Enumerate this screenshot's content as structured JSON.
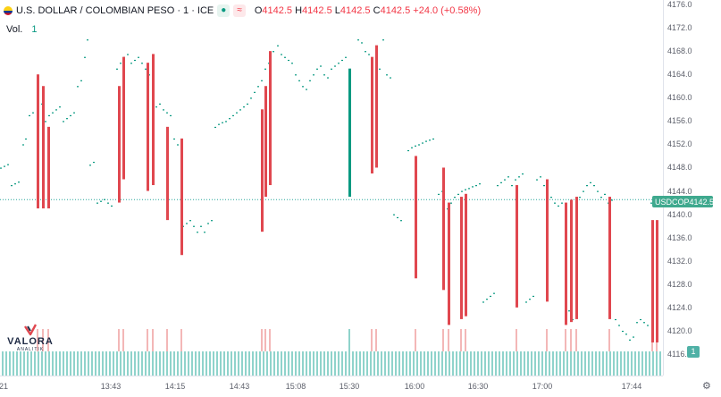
{
  "header": {
    "symbol_title": "U.S. DOLLAR / COLOMBIAN PESO · 1 · ICE",
    "pill_a": "●",
    "pill_b": "≈",
    "o_label": "O",
    "o_value": "4142.5",
    "h_label": "H",
    "h_value": "4142.5",
    "l_label": "L",
    "l_value": "4142.5",
    "c_label": "C",
    "c_value": "4142.5",
    "change": "+24.0 (+0.58%)"
  },
  "volume_legend": {
    "label": "Vol.",
    "value": "1"
  },
  "logo": {
    "name": "VALORA",
    "tagline": "ANALITIK"
  },
  "last_price_tag": {
    "symbol": "USDCOP",
    "value": "4142.5"
  },
  "volume_tag": "1",
  "time_edge_label": "21",
  "colors": {
    "up": "#089981",
    "down": "#e0474f",
    "volume": "#8fd3cb",
    "volume_down": "#f3b7b7",
    "accent": "#2962ff"
  },
  "chart_data": {
    "type": "candlestick",
    "ylim": [
      4116,
      4176
    ],
    "last_price": 4142.5,
    "y_ticks": [
      4176.0,
      4172.0,
      4168.0,
      4164.0,
      4160.0,
      4156.0,
      4152.0,
      4148.0,
      4144.0,
      4140.0,
      4136.0,
      4132.0,
      4128.0,
      4124.0,
      4120.0,
      4116.0
    ],
    "x_ticks": [
      "13:43",
      "14:15",
      "14:43",
      "15:08",
      "15:30",
      "16:00",
      "16:30",
      "17:00",
      "17:44"
    ],
    "dots": [
      [
        0,
        4148
      ],
      [
        4,
        4148.3
      ],
      [
        8,
        4148.6
      ],
      [
        12,
        4145
      ],
      [
        16,
        4145.3
      ],
      [
        20,
        4145.6
      ],
      [
        25,
        4152
      ],
      [
        28,
        4153
      ],
      [
        32,
        4157
      ],
      [
        36,
        4157.5
      ],
      [
        42,
        4158
      ],
      [
        46,
        4159
      ],
      [
        50,
        4156
      ],
      [
        54,
        4157
      ],
      [
        58,
        4157.5
      ],
      [
        62,
        4158
      ],
      [
        66,
        4158.5
      ],
      [
        70,
        4156
      ],
      [
        74,
        4156.5
      ],
      [
        78,
        4157
      ],
      [
        82,
        4157.5
      ],
      [
        86,
        4162
      ],
      [
        90,
        4163
      ],
      [
        94,
        4167
      ],
      [
        97,
        4170
      ],
      [
        100,
        4148.5
      ],
      [
        104,
        4149
      ],
      [
        108,
        4142
      ],
      [
        112,
        4142.3
      ],
      [
        116,
        4142.6
      ],
      [
        120,
        4142
      ],
      [
        124,
        4141.5
      ],
      [
        130,
        4165
      ],
      [
        134,
        4166
      ],
      [
        138,
        4167
      ],
      [
        142,
        4167.5
      ],
      [
        146,
        4166
      ],
      [
        150,
        4166.5
      ],
      [
        154,
        4167
      ],
      [
        158,
        4166
      ],
      [
        162,
        4165
      ],
      [
        166,
        4164
      ],
      [
        170,
        4158
      ],
      [
        174,
        4158.5
      ],
      [
        178,
        4159
      ],
      [
        182,
        4158
      ],
      [
        186,
        4157.5
      ],
      [
        190,
        4157
      ],
      [
        194,
        4153
      ],
      [
        198,
        4152
      ],
      [
        204,
        4138
      ],
      [
        208,
        4138.5
      ],
      [
        212,
        4139
      ],
      [
        216,
        4138
      ],
      [
        220,
        4137
      ],
      [
        224,
        4138
      ],
      [
        228,
        4137
      ],
      [
        232,
        4138.5
      ],
      [
        236,
        4139
      ],
      [
        240,
        4155
      ],
      [
        244,
        4155.5
      ],
      [
        248,
        4155.8
      ],
      [
        252,
        4156
      ],
      [
        256,
        4156.5
      ],
      [
        260,
        4157
      ],
      [
        264,
        4157.5
      ],
      [
        268,
        4158
      ],
      [
        272,
        4158.5
      ],
      [
        276,
        4159
      ],
      [
        280,
        4160
      ],
      [
        284,
        4161
      ],
      [
        288,
        4162
      ],
      [
        292,
        4163
      ],
      [
        296,
        4165
      ],
      [
        300,
        4166
      ],
      [
        305,
        4168
      ],
      [
        310,
        4169
      ],
      [
        314,
        4167.5
      ],
      [
        318,
        4167
      ],
      [
        322,
        4166.5
      ],
      [
        326,
        4166
      ],
      [
        330,
        4164
      ],
      [
        334,
        4163
      ],
      [
        338,
        4162
      ],
      [
        342,
        4161.5
      ],
      [
        346,
        4163
      ],
      [
        350,
        4164
      ],
      [
        354,
        4165
      ],
      [
        358,
        4165.5
      ],
      [
        362,
        4164
      ],
      [
        366,
        4163.5
      ],
      [
        370,
        4165
      ],
      [
        374,
        4165.5
      ],
      [
        378,
        4166
      ],
      [
        382,
        4166.5
      ],
      [
        386,
        4167
      ],
      [
        400,
        4170
      ],
      [
        404,
        4169.5
      ],
      [
        408,
        4168
      ],
      [
        412,
        4167.5
      ],
      [
        416,
        4166.5
      ],
      [
        420,
        4166
      ],
      [
        424,
        4165
      ],
      [
        428,
        4170
      ],
      [
        432,
        4164
      ],
      [
        436,
        4163.5
      ],
      [
        440,
        4140
      ],
      [
        444,
        4139.5
      ],
      [
        448,
        4139
      ],
      [
        456,
        4151
      ],
      [
        460,
        4151.5
      ],
      [
        464,
        4151.8
      ],
      [
        468,
        4152
      ],
      [
        472,
        4152.3
      ],
      [
        476,
        4152.6
      ],
      [
        480,
        4152.8
      ],
      [
        484,
        4153
      ],
      [
        490,
        4143.5
      ],
      [
        494,
        4144
      ],
      [
        500,
        4141
      ],
      [
        504,
        4142
      ],
      [
        508,
        4143
      ],
      [
        512,
        4143.5
      ],
      [
        516,
        4144
      ],
      [
        520,
        4144.3
      ],
      [
        524,
        4144.5
      ],
      [
        528,
        4144.8
      ],
      [
        532,
        4145
      ],
      [
        536,
        4145.3
      ],
      [
        540,
        4125
      ],
      [
        544,
        4125.5
      ],
      [
        548,
        4126
      ],
      [
        552,
        4126.5
      ],
      [
        556,
        4145
      ],
      [
        560,
        4145.5
      ],
      [
        564,
        4146
      ],
      [
        568,
        4146.5
      ],
      [
        572,
        4145
      ],
      [
        576,
        4146
      ],
      [
        580,
        4146.5
      ],
      [
        584,
        4147
      ],
      [
        588,
        4125
      ],
      [
        592,
        4125.5
      ],
      [
        596,
        4126
      ],
      [
        600,
        4146
      ],
      [
        604,
        4146.5
      ],
      [
        608,
        4145
      ],
      [
        612,
        4144
      ],
      [
        616,
        4143
      ],
      [
        620,
        4142
      ],
      [
        624,
        4141.5
      ],
      [
        628,
        4142
      ],
      [
        632,
        4123
      ],
      [
        636,
        4123.5
      ],
      [
        640,
        4122
      ],
      [
        644,
        4122.5
      ],
      [
        648,
        4143
      ],
      [
        652,
        4144
      ],
      [
        656,
        4145
      ],
      [
        660,
        4145.5
      ],
      [
        664,
        4145
      ],
      [
        668,
        4144
      ],
      [
        672,
        4143
      ],
      [
        676,
        4143.5
      ],
      [
        680,
        4142
      ],
      [
        684,
        4142.5
      ],
      [
        688,
        4122
      ],
      [
        692,
        4121
      ],
      [
        696,
        4120
      ],
      [
        700,
        4119.5
      ],
      [
        704,
        4118.5
      ],
      [
        708,
        4119
      ],
      [
        712,
        4121.5
      ],
      [
        716,
        4122
      ],
      [
        720,
        4121.5
      ],
      [
        724,
        4121
      ],
      [
        728,
        4142
      ],
      [
        732,
        4141.5
      ]
    ],
    "candles": [
      {
        "x": 42,
        "o": 4164,
        "c": 4141,
        "d": "down"
      },
      {
        "x": 48,
        "o": 4162,
        "c": 4141,
        "d": "down"
      },
      {
        "x": 54,
        "o": 4155,
        "c": 4141,
        "d": "down"
      },
      {
        "x": 133,
        "o": 4162,
        "c": 4142,
        "d": "down"
      },
      {
        "x": 138,
        "o": 4167,
        "c": 4146,
        "d": "down"
      },
      {
        "x": 165,
        "o": 4166,
        "c": 4144,
        "d": "down"
      },
      {
        "x": 171,
        "o": 4167.5,
        "c": 4145,
        "d": "down"
      },
      {
        "x": 187,
        "o": 4155,
        "c": 4139,
        "d": "down"
      },
      {
        "x": 203,
        "o": 4153,
        "c": 4133,
        "d": "down"
      },
      {
        "x": 293,
        "o": 4158,
        "c": 4137,
        "d": "down"
      },
      {
        "x": 297,
        "o": 4162,
        "c": 4143,
        "d": "down"
      },
      {
        "x": 302,
        "o": 4168,
        "c": 4145,
        "d": "down"
      },
      {
        "x": 391,
        "o": 4143,
        "c": 4165,
        "d": "up"
      },
      {
        "x": 416,
        "o": 4167,
        "c": 4147,
        "d": "down"
      },
      {
        "x": 421,
        "o": 4169,
        "c": 4148,
        "d": "down"
      },
      {
        "x": 465,
        "o": 4150,
        "c": 4129,
        "d": "down"
      },
      {
        "x": 496,
        "o": 4148,
        "c": 4127,
        "d": "down"
      },
      {
        "x": 502,
        "o": 4142,
        "c": 4121,
        "d": "down"
      },
      {
        "x": 516,
        "o": 4143,
        "c": 4122,
        "d": "down"
      },
      {
        "x": 521,
        "o": 4143.5,
        "c": 4122.5,
        "d": "down"
      },
      {
        "x": 578,
        "o": 4145,
        "c": 4124,
        "d": "down"
      },
      {
        "x": 612,
        "o": 4146,
        "c": 4125,
        "d": "down"
      },
      {
        "x": 633,
        "o": 4142,
        "c": 4121,
        "d": "down"
      },
      {
        "x": 639,
        "o": 4142.5,
        "c": 4121.5,
        "d": "down"
      },
      {
        "x": 645,
        "o": 4143,
        "c": 4122,
        "d": "down"
      },
      {
        "x": 682,
        "o": 4143,
        "c": 4122,
        "d": "down"
      },
      {
        "x": 730,
        "o": 4139,
        "c": 4118,
        "d": "down"
      },
      {
        "x": 735,
        "o": 4139,
        "c": 4118,
        "d": "down"
      }
    ]
  }
}
